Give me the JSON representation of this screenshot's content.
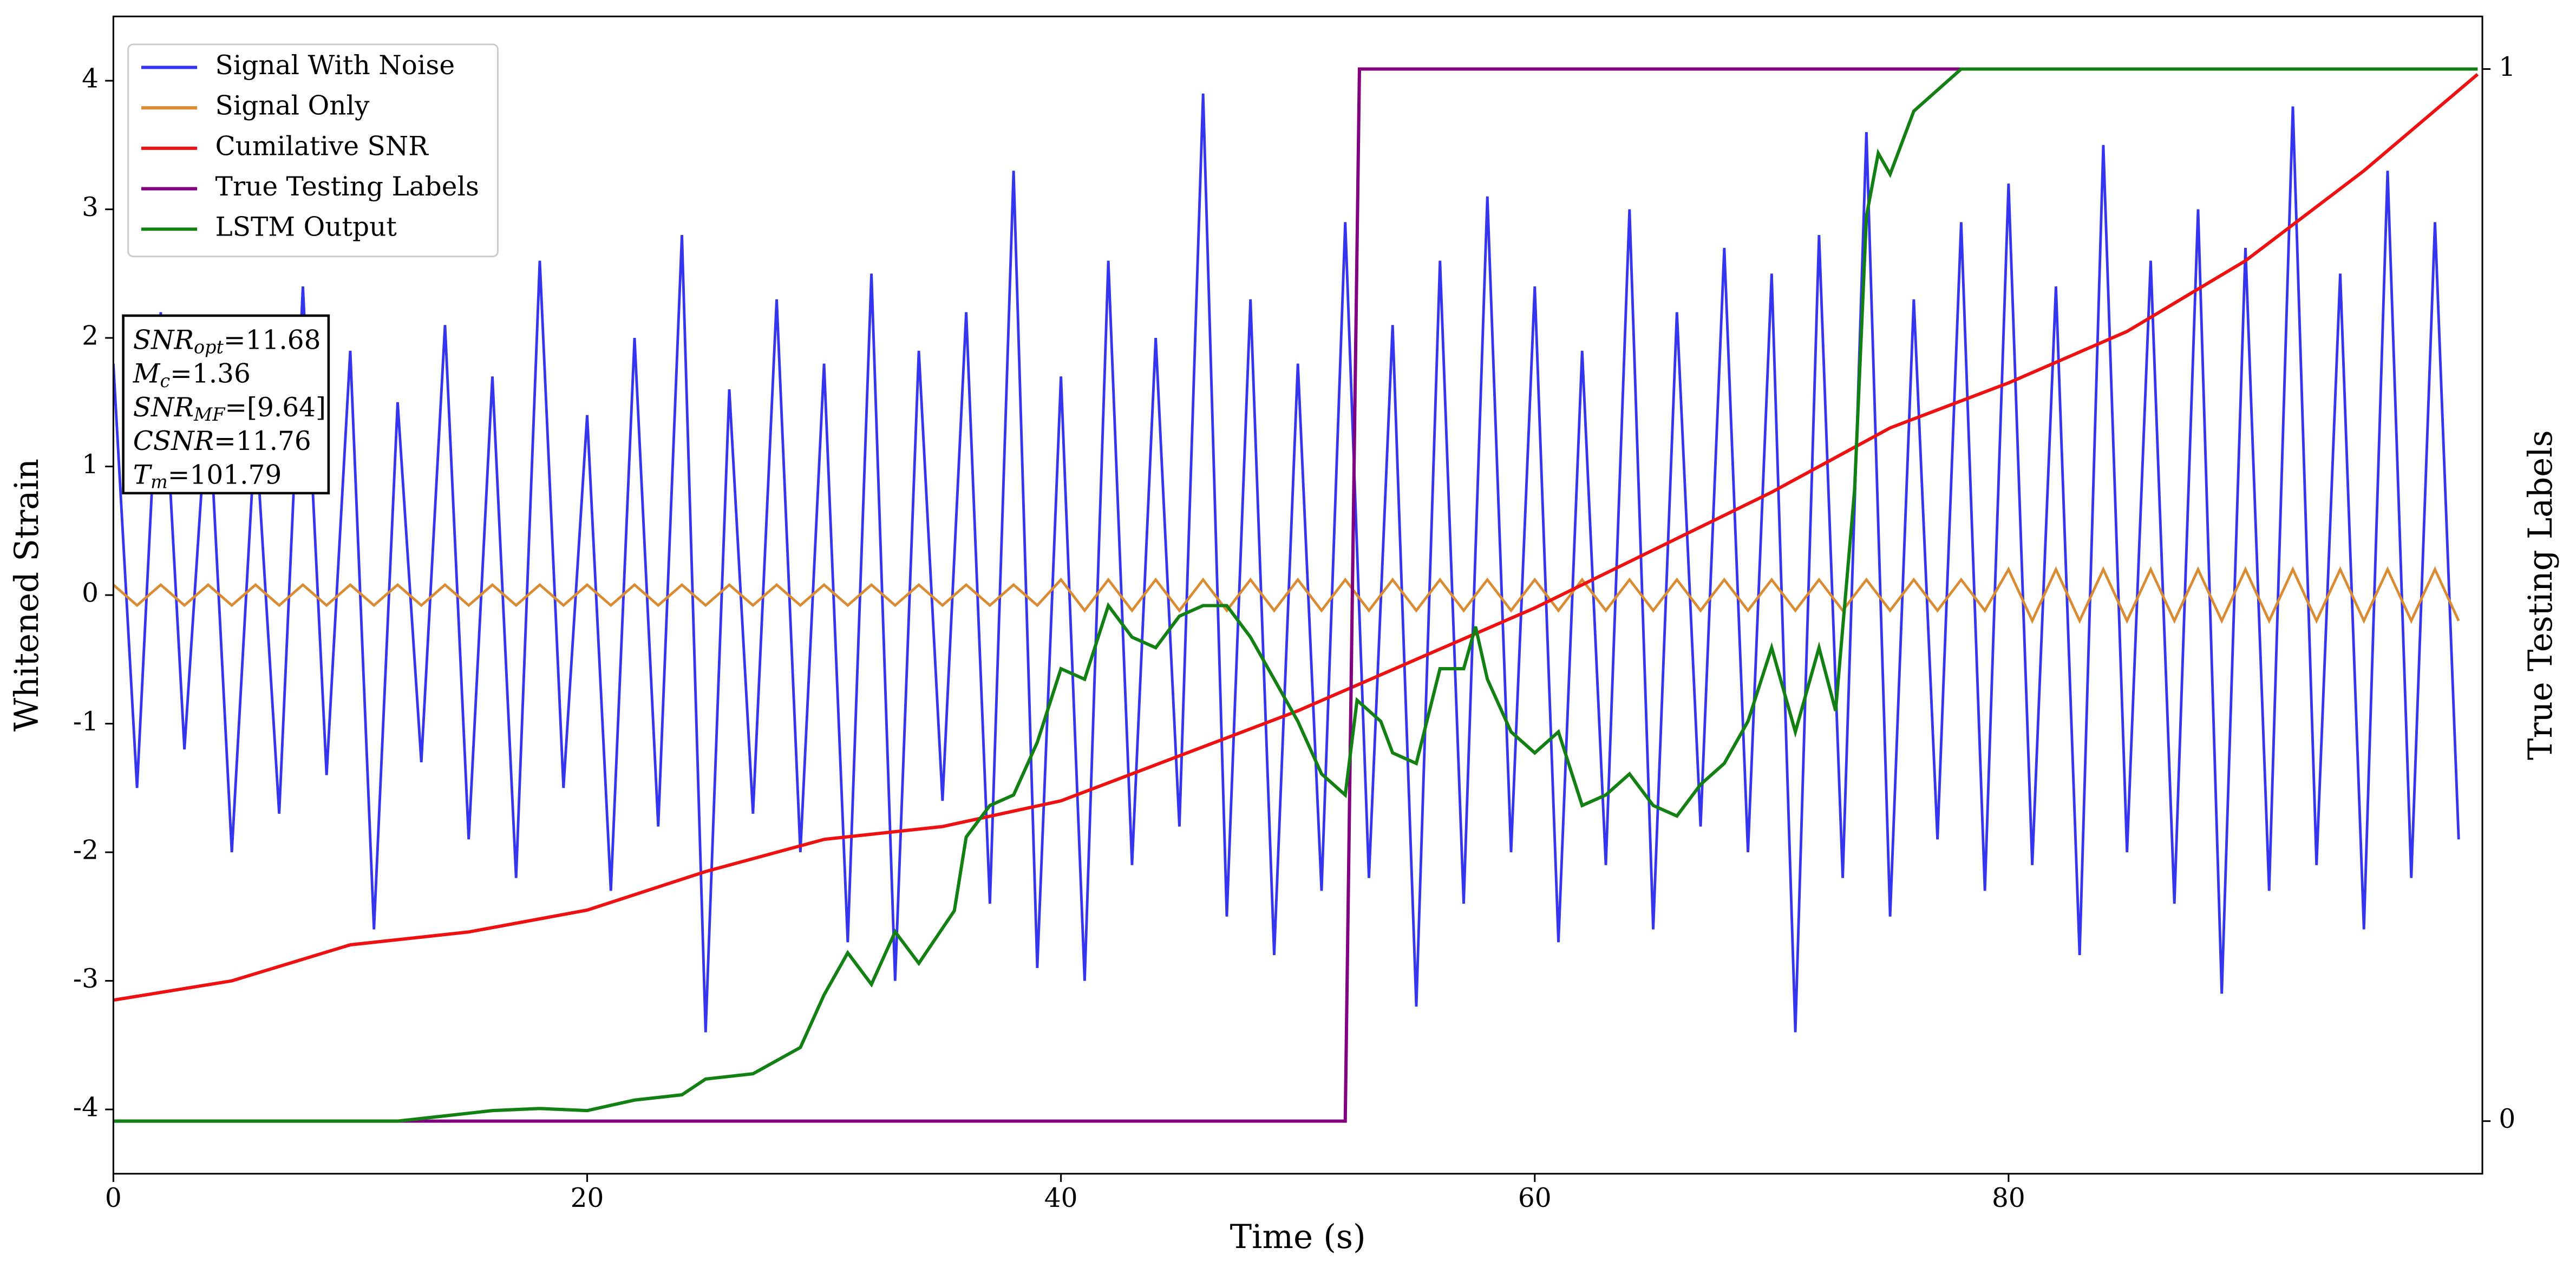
{
  "chart_data": {
    "type": "line",
    "xlabel": "Time (s)",
    "ylabel": "Whitened Strain",
    "y2label": "True Testing Labels",
    "xlim": [
      0,
      100
    ],
    "xticks": [
      0,
      20,
      40,
      60,
      80
    ],
    "ylim": [
      -4.5,
      4.5
    ],
    "yticks": [
      -4,
      -3,
      -2,
      -1,
      0,
      1,
      2,
      3,
      4
    ],
    "y2lim": [
      -0.05,
      1.05
    ],
    "y2ticks": [
      0,
      1
    ],
    "legend": "upper left",
    "annotation": [
      {
        "main": "SNR",
        "sub": "opt",
        "rest": "=11.68"
      },
      {
        "main": "M",
        "sub": "c",
        "rest": "=1.36"
      },
      {
        "main": "SNR",
        "sub": "MF",
        "rest": "=[9.64]"
      },
      {
        "main": "CSNR",
        "rest": "=11.76"
      },
      {
        "main": "T",
        "sub": "m",
        "rest": "=101.79"
      }
    ],
    "series": [
      {
        "name": "Signal With Noise",
        "color": "#3535f0",
        "x": [
          0,
          1,
          2,
          3,
          4,
          5,
          6,
          7,
          8,
          9,
          10,
          11,
          12,
          13,
          14,
          15,
          16,
          17,
          18,
          19,
          20,
          21,
          22,
          23,
          24,
          25,
          26,
          27,
          28,
          29,
          30,
          31,
          32,
          33,
          34,
          35,
          36,
          37,
          38,
          39,
          40,
          41,
          42,
          43,
          44,
          45,
          46,
          47,
          48,
          49,
          50,
          51,
          52,
          53,
          54,
          55,
          56,
          57,
          58,
          59,
          60,
          61,
          62,
          63,
          64,
          65,
          66,
          67,
          68,
          69,
          70,
          71,
          72,
          73,
          74,
          75,
          76,
          77,
          78,
          79,
          80,
          81,
          82,
          83,
          84,
          85,
          86,
          87,
          88,
          89,
          90,
          91,
          92,
          93,
          94,
          95,
          96,
          97,
          98,
          99
        ],
        "values": [
          1.8,
          -1.5,
          2.2,
          -1.2,
          1.6,
          -2.0,
          1.3,
          -1.7,
          2.4,
          -1.4,
          1.9,
          -2.6,
          1.5,
          -1.3,
          2.1,
          -1.9,
          1.7,
          -2.2,
          2.6,
          -1.5,
          1.4,
          -2.3,
          2.0,
          -1.8,
          2.8,
          -3.4,
          1.6,
          -1.7,
          2.3,
          -2.0,
          1.8,
          -2.7,
          2.5,
          -3.0,
          1.9,
          -1.6,
          2.2,
          -2.4,
          3.3,
          -2.9,
          1.7,
          -3.0,
          2.6,
          -2.1,
          2.0,
          -1.8,
          3.9,
          -2.5,
          2.3,
          -2.8,
          1.8,
          -2.3,
          2.9,
          -2.2,
          2.1,
          -3.2,
          2.6,
          -2.4,
          3.1,
          -2.0,
          2.4,
          -2.7,
          1.9,
          -2.1,
          3.0,
          -2.6,
          2.2,
          -1.8,
          2.7,
          -2.0,
          2.5,
          -3.4,
          2.8,
          -2.2,
          3.6,
          -2.5,
          2.3,
          -1.9,
          2.9,
          -2.3,
          3.2,
          -2.1,
          2.4,
          -2.8,
          3.5,
          -2.0,
          2.6,
          -2.4,
          3.0,
          -3.1,
          2.7,
          -2.3,
          3.8,
          -2.1,
          2.5,
          -2.6,
          3.3,
          -2.2,
          2.9,
          -1.9
        ]
      },
      {
        "name": "Signal Only",
        "color": "#d98c33",
        "x": [
          0,
          1,
          2,
          3,
          4,
          5,
          6,
          7,
          8,
          9,
          10,
          11,
          12,
          13,
          14,
          15,
          16,
          17,
          18,
          19,
          20,
          21,
          22,
          23,
          24,
          25,
          26,
          27,
          28,
          29,
          30,
          31,
          32,
          33,
          34,
          35,
          36,
          37,
          38,
          39,
          40,
          41,
          42,
          43,
          44,
          45,
          46,
          47,
          48,
          49,
          50,
          51,
          52,
          53,
          54,
          55,
          56,
          57,
          58,
          59,
          60,
          61,
          62,
          63,
          64,
          65,
          66,
          67,
          68,
          69,
          70,
          71,
          72,
          73,
          74,
          75,
          76,
          77,
          78,
          79,
          80,
          81,
          82,
          83,
          84,
          85,
          86,
          87,
          88,
          89,
          90,
          91,
          92,
          93,
          94,
          95,
          96,
          97,
          98,
          99
        ],
        "values": [
          0.08,
          -0.08,
          0.08,
          -0.08,
          0.08,
          -0.08,
          0.08,
          -0.08,
          0.08,
          -0.08,
          0.08,
          -0.08,
          0.08,
          -0.08,
          0.08,
          -0.08,
          0.08,
          -0.08,
          0.08,
          -0.08,
          0.08,
          -0.08,
          0.08,
          -0.08,
          0.08,
          -0.08,
          0.08,
          -0.08,
          0.08,
          -0.08,
          0.08,
          -0.08,
          0.08,
          -0.08,
          0.08,
          -0.08,
          0.08,
          -0.08,
          0.08,
          -0.08,
          0.12,
          -0.12,
          0.12,
          -0.12,
          0.12,
          -0.12,
          0.12,
          -0.12,
          0.12,
          -0.12,
          0.12,
          -0.12,
          0.12,
          -0.12,
          0.12,
          -0.12,
          0.12,
          -0.12,
          0.12,
          -0.12,
          0.12,
          -0.12,
          0.12,
          -0.12,
          0.12,
          -0.12,
          0.12,
          -0.12,
          0.12,
          -0.12,
          0.12,
          -0.12,
          0.12,
          -0.12,
          0.12,
          -0.12,
          0.12,
          -0.12,
          0.12,
          -0.12,
          0.2,
          -0.2,
          0.2,
          -0.2,
          0.2,
          -0.2,
          0.2,
          -0.2,
          0.2,
          -0.2,
          0.2,
          -0.2,
          0.2,
          -0.2,
          0.2,
          -0.2,
          0.2,
          -0.2,
          0.2,
          -0.2
        ]
      },
      {
        "name": "Cumilative SNR",
        "color": "#ee1111",
        "x": [
          0,
          5,
          10,
          15,
          20,
          25,
          30,
          35,
          40,
          45,
          50,
          55,
          60,
          65,
          70,
          75,
          80,
          85,
          90,
          95,
          99.8
        ],
        "values": [
          -3.15,
          -3.0,
          -2.72,
          -2.62,
          -2.45,
          -2.15,
          -1.9,
          -1.8,
          -1.6,
          -1.25,
          -0.9,
          -0.5,
          -0.1,
          0.35,
          0.8,
          1.3,
          1.65,
          2.05,
          2.6,
          3.3,
          4.05
        ]
      },
      {
        "name": "True Testing Labels",
        "color": "#800080",
        "axis": "y2",
        "x": [
          0,
          52,
          52.6,
          99.8
        ],
        "values": [
          0,
          0,
          1,
          1
        ]
      },
      {
        "name": "LSTM Output",
        "color": "#138013",
        "axis": "y2",
        "x": [
          0,
          12,
          14,
          16,
          18,
          20,
          22,
          24,
          25,
          27,
          29,
          30,
          31,
          32,
          33,
          34,
          35.5,
          36,
          37,
          38,
          39,
          40,
          41,
          42,
          43,
          44,
          45,
          46,
          47,
          48,
          49,
          50,
          51,
          52,
          52.5,
          53.5,
          54,
          55,
          56,
          57,
          57.5,
          58,
          59,
          60,
          61,
          62,
          63,
          64,
          65,
          66,
          67,
          68,
          69,
          70,
          71,
          72,
          72.7,
          73.5,
          74,
          74.5,
          75,
          76,
          78,
          80,
          85,
          99.8
        ],
        "values": [
          0,
          0,
          0.005,
          0.01,
          0.012,
          0.01,
          0.02,
          0.025,
          0.04,
          0.045,
          0.07,
          0.12,
          0.16,
          0.13,
          0.18,
          0.15,
          0.2,
          0.27,
          0.3,
          0.31,
          0.36,
          0.43,
          0.42,
          0.49,
          0.46,
          0.45,
          0.48,
          0.49,
          0.49,
          0.46,
          0.42,
          0.38,
          0.33,
          0.31,
          0.4,
          0.38,
          0.35,
          0.34,
          0.43,
          0.43,
          0.47,
          0.42,
          0.37,
          0.35,
          0.37,
          0.3,
          0.31,
          0.33,
          0.3,
          0.29,
          0.32,
          0.34,
          0.38,
          0.45,
          0.37,
          0.45,
          0.39,
          0.6,
          0.86,
          0.92,
          0.9,
          0.96,
          1.0,
          1.0,
          1.0,
          1.0
        ]
      }
    ]
  }
}
